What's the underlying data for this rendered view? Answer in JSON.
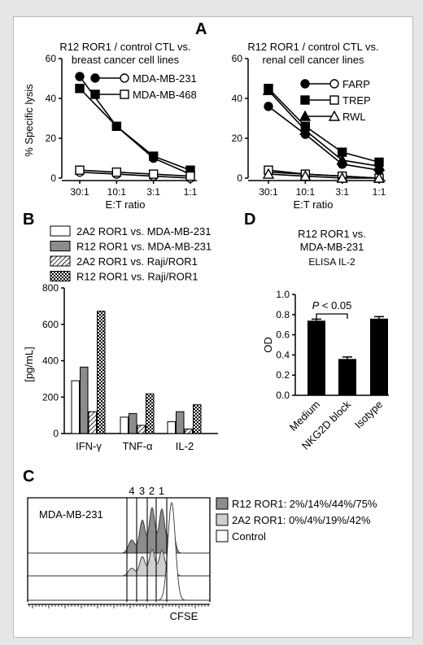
{
  "panel_labels": {
    "a": "A",
    "b": "B",
    "c": "C",
    "d": "D"
  },
  "chart_data": [
    {
      "id": "A-left",
      "type": "line",
      "title_line1": "R12 ROR1 / control CTL vs.",
      "title_line2": "breast cancer cell lines",
      "xlabel": "E:T ratio",
      "ylabel": "% Specific lysis",
      "categories": [
        "30:1",
        "10:1",
        "3:1",
        "1:1"
      ],
      "ylim": [
        0,
        60
      ],
      "yticks": [
        "0",
        "20",
        "40",
        "60"
      ],
      "series": [
        {
          "name": "MDA-MB-231",
          "marker": "circle",
          "filled": true,
          "values": [
            51,
            26,
            10,
            2
          ]
        },
        {
          "name": "MDA-MB-231",
          "marker": "circle",
          "filled": false,
          "values": [
            3,
            2,
            1,
            0
          ]
        },
        {
          "name": "MDA-MB-468",
          "marker": "square",
          "filled": true,
          "values": [
            45,
            26,
            11,
            4
          ]
        },
        {
          "name": "MDA-MB-468",
          "marker": "square",
          "filled": false,
          "values": [
            4,
            3,
            2,
            1
          ]
        }
      ],
      "legend": [
        {
          "label": "MDA-MB-231",
          "marker": "circle"
        },
        {
          "label": "MDA-MB-468",
          "marker": "square"
        }
      ]
    },
    {
      "id": "A-right",
      "type": "line",
      "title_line1": "R12 ROR1 / control CTL vs.",
      "title_line2": "renal cell cancer lines",
      "xlabel": "E:T ratio",
      "categories": [
        "30:1",
        "10:1",
        "3:1",
        "1:1"
      ],
      "ylim": [
        0,
        60
      ],
      "yticks": [
        "0",
        "20",
        "40",
        "60"
      ],
      "series": [
        {
          "name": "FARP",
          "marker": "circle",
          "filled": true,
          "values": [
            36,
            22,
            7,
            4
          ]
        },
        {
          "name": "FARP",
          "marker": "circle",
          "filled": false,
          "values": [
            3,
            2,
            1,
            0
          ]
        },
        {
          "name": "TREP",
          "marker": "square",
          "filled": true,
          "values": [
            45,
            26,
            13,
            8
          ]
        },
        {
          "name": "TREP",
          "marker": "square",
          "filled": false,
          "values": [
            4,
            2,
            1,
            0
          ]
        },
        {
          "name": "RWL",
          "marker": "triangle",
          "filled": true,
          "values": [
            44,
            24,
            9,
            6
          ]
        },
        {
          "name": "RWL",
          "marker": "triangle",
          "filled": false,
          "values": [
            2,
            1,
            0,
            0
          ]
        }
      ],
      "legend": [
        {
          "label": "FARP",
          "marker": "circle"
        },
        {
          "label": "TREP",
          "marker": "square"
        },
        {
          "label": "RWL",
          "marker": "triangle"
        }
      ]
    },
    {
      "id": "B",
      "type": "bar",
      "ylabel": "[pg/mL]",
      "categories": [
        "IFN-γ",
        "TNF-α",
        "IL-2"
      ],
      "ylim": [
        0,
        800
      ],
      "yticks": [
        "0",
        "200",
        "400",
        "600",
        "800"
      ],
      "series": [
        {
          "name": "2A2 ROR1 vs. MDA-MB-231",
          "pattern": "white",
          "values": [
            290,
            90,
            65
          ]
        },
        {
          "name": "R12 ROR1 vs. MDA-MB-231",
          "pattern": "gray",
          "values": [
            365,
            110,
            120
          ]
        },
        {
          "name": "2A2 ROR1 vs. Raji/ROR1",
          "pattern": "hatch",
          "values": [
            120,
            45,
            25
          ]
        },
        {
          "name": "R12 ROR1 vs. Raji/ROR1",
          "pattern": "checker",
          "values": [
            672,
            218,
            158
          ]
        }
      ]
    },
    {
      "id": "D",
      "type": "bar",
      "title_line1": "R12 ROR1 vs.",
      "title_line2": "MDA-MB-231",
      "title_line3": "ELISA IL-2",
      "ylabel": "OD",
      "categories": [
        "Medium",
        "NKG2D block",
        "Isotype"
      ],
      "values": [
        0.74,
        0.36,
        0.76
      ],
      "errors": [
        0.015,
        0.02,
        0.02
      ],
      "ylim": [
        0,
        1.0
      ],
      "yticks": [
        "0.0",
        "0.2",
        "0.4",
        "0.6",
        "0.8",
        "1.0"
      ],
      "annotation": "P < 0.05"
    },
    {
      "id": "C",
      "type": "histogram",
      "sample": "MDA-MB-231",
      "xlabel": "CFSE",
      "generations": [
        "4",
        "3",
        "2",
        "1"
      ],
      "series": [
        {
          "name": "R12 ROR1",
          "color": "#8c8c8c",
          "percentages": "2%/14%/44%/75%"
        },
        {
          "name": "2A2 ROR1",
          "color": "#cfcfcf",
          "percentages": "0%/4%/19%/42%"
        },
        {
          "name": "Control",
          "color": "#ffffff",
          "percentages": ""
        }
      ],
      "legend": [
        {
          "label": "R12 ROR1: 2%/14%/44%/75%",
          "color": "#8c8c8c"
        },
        {
          "label": "2A2 ROR1: 0%/4%/19%/42%",
          "color": "#cfcfcf"
        },
        {
          "label": "Control",
          "color": "#ffffff"
        }
      ]
    }
  ]
}
